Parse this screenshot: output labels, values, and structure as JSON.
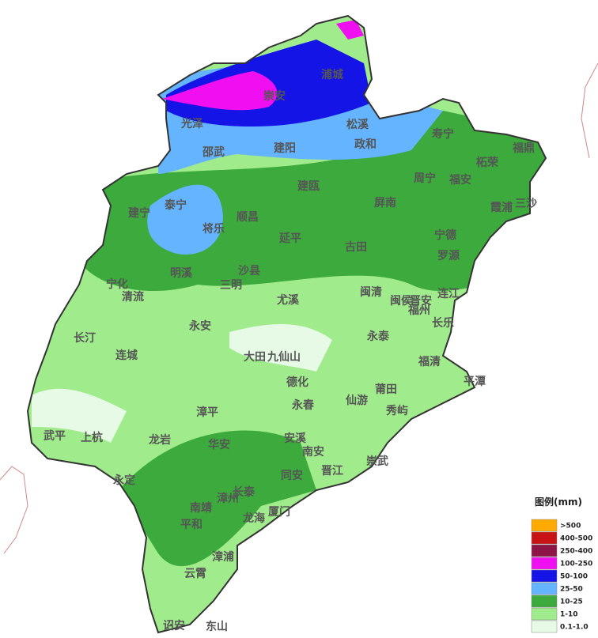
{
  "places": [
    "浦城",
    "崇安",
    "光泽",
    "松溪",
    "寿宁",
    "邵武",
    "建阳",
    "政和",
    "福鼎",
    "柘荣",
    "周宁",
    "福安",
    "建瓯",
    "建宁",
    "泰宁",
    "顺昌",
    "屏南",
    "霞浦",
    "三沙",
    "将乐",
    "宁德",
    "延平",
    "古田",
    "罗源",
    "明溪",
    "沙县",
    "宁化",
    "三明",
    "清流",
    "尤溪",
    "闽清",
    "连江",
    "闽侯",
    "福州",
    "晋安",
    "长乐",
    "永安",
    "长汀",
    "永泰",
    "连城",
    "大田",
    "九仙山",
    "福清",
    "平潭",
    "德化",
    "莆田",
    "仙游",
    "永春",
    "秀屿",
    "漳平",
    "武平",
    "上杭",
    "安溪",
    "龙岩",
    "华安",
    "南安",
    "崇武",
    "晋江",
    "同安",
    "永定",
    "长泰",
    "漳州",
    "南靖",
    "厦门",
    "龙海",
    "平和",
    "漳浦",
    "云霄",
    "诏安",
    "东山"
  ],
  "legend": {
    "title": "图例(mm)",
    "items": [
      {
        "label": ">500",
        "color": "#ffaa00"
      },
      {
        "label": "400-500",
        "color": "#c81414"
      },
      {
        "label": "250-400",
        "color": "#8c1446"
      },
      {
        "label": "100-250",
        "color": "#f00ff0"
      },
      {
        "label": "50-100",
        "color": "#1414e6"
      },
      {
        "label": "25-50",
        "color": "#64b4ff"
      },
      {
        "label": "10-25",
        "color": "#3caa3c"
      },
      {
        "label": "1-10",
        "color": "#a0eb8c"
      },
      {
        "label": "0.1-1.0",
        "color": "#e6fae6"
      }
    ]
  }
}
